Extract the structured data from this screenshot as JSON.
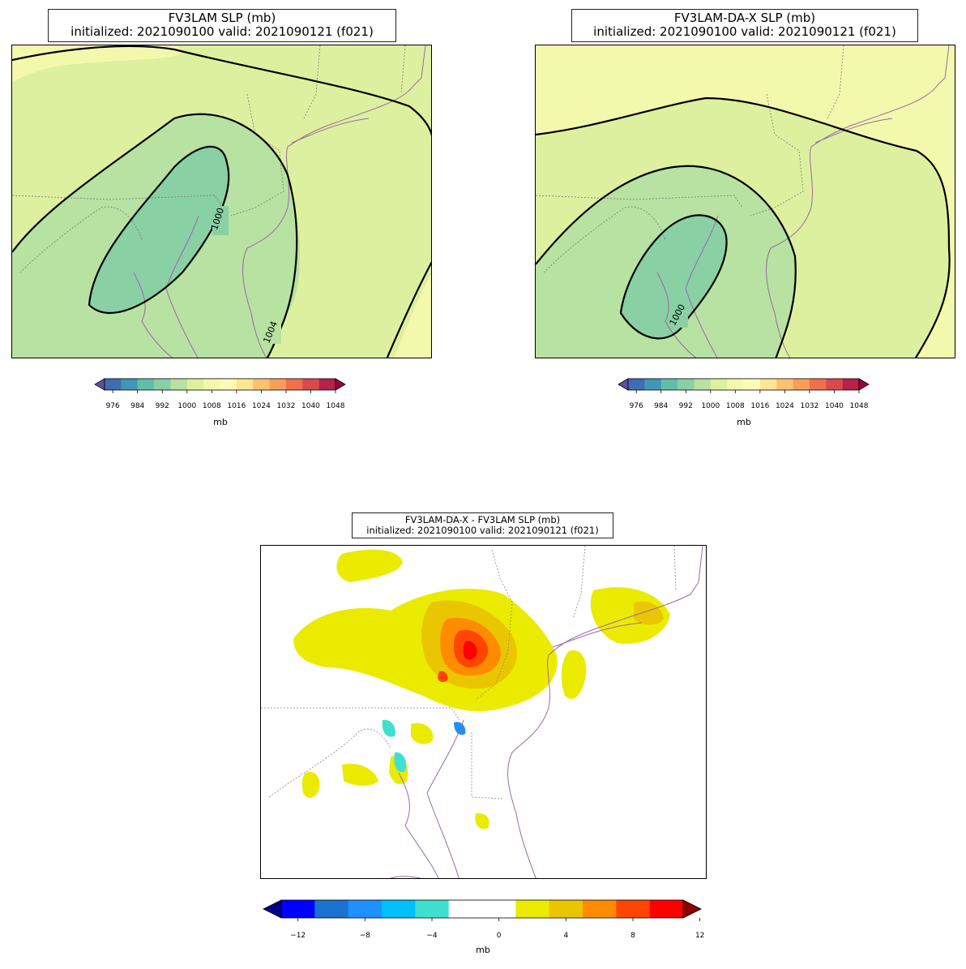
{
  "panels": {
    "left": {
      "title_line1": "FV3LAM SLP (mb)",
      "title_line2": "initialized: 2021090100 valid: 2021090121 (f021)",
      "contour_labels": [
        "1000",
        "1004"
      ]
    },
    "right": {
      "title_line1": "FV3LAM-DA-X SLP (mb)",
      "title_line2": "initialized: 2021090100 valid: 2021090121 (f021)",
      "contour_labels": [
        "1000"
      ]
    },
    "bottom": {
      "title_line1": "FV3LAM-DA-X - FV3LAM SLP (mb)",
      "title_line2": "initialized: 2021090100 valid: 2021090121 (f021)"
    }
  },
  "colorbar_slp": {
    "ticks": [
      "976",
      "984",
      "992",
      "1000",
      "1008",
      "1016",
      "1024",
      "1032",
      "1040",
      "1048"
    ],
    "unit": "mb",
    "colors": [
      "#5e4fa2",
      "#3f6db1",
      "#3f96b7",
      "#63bda9",
      "#89d0a4",
      "#b7e2a1",
      "#ddf0a0",
      "#f2f9ad",
      "#fffbb7",
      "#fee593",
      "#fdc26e",
      "#f99e59",
      "#f1704a",
      "#da4a4c",
      "#b8214a",
      "#9e0142"
    ]
  },
  "colorbar_diff": {
    "ticks": [
      "−12",
      "−8",
      "−4",
      "0",
      "4",
      "8",
      "12"
    ],
    "unit": "mb",
    "colors": [
      "#00008b",
      "#0000ff",
      "#1a72d1",
      "#1e90ff",
      "#00bfff",
      "#40e0d0",
      "#ffffff",
      "#ffffff",
      "#ebeb00",
      "#eac600",
      "#ff8c00",
      "#ff4500",
      "#ff0000",
      "#8b0000"
    ]
  }
}
